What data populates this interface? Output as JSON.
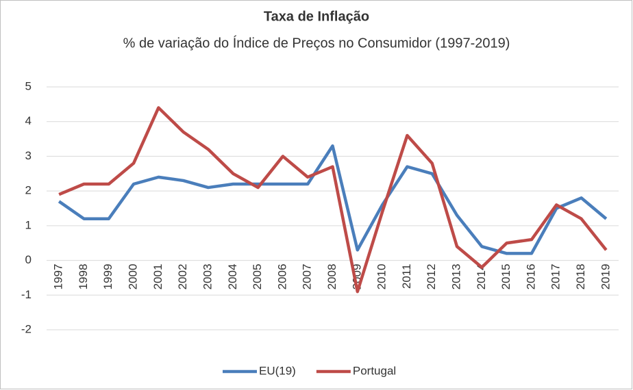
{
  "chart_data": {
    "type": "line",
    "title": "Taxa de Inflação",
    "subtitle": "% de variação do Índice de Preços no Consumidor (1997-2019)",
    "categories": [
      "1997",
      "1998",
      "1999",
      "2000",
      "2001",
      "2002",
      "2003",
      "2004",
      "2005",
      "2006",
      "2007",
      "2008",
      "2009",
      "2010",
      "2011",
      "2012",
      "2013",
      "2014",
      "2015",
      "2016",
      "2017",
      "2018",
      "2019"
    ],
    "series": [
      {
        "name": "EU(19)",
        "color": "#4a7ebb",
        "values": [
          1.7,
          1.2,
          1.2,
          2.2,
          2.4,
          2.3,
          2.1,
          2.2,
          2.2,
          2.2,
          2.2,
          3.3,
          0.3,
          1.6,
          2.7,
          2.5,
          1.3,
          0.4,
          0.2,
          0.2,
          1.5,
          1.8,
          1.2
        ]
      },
      {
        "name": "Portugal",
        "color": "#be4b48",
        "values": [
          1.9,
          2.2,
          2.2,
          2.8,
          4.4,
          3.7,
          3.2,
          2.5,
          2.1,
          3.0,
          2.4,
          2.7,
          -0.9,
          1.4,
          3.6,
          2.8,
          0.4,
          -0.2,
          0.5,
          0.6,
          1.6,
          1.2,
          0.3
        ]
      }
    ],
    "ylim": [
      -2,
      5
    ],
    "yticks": [
      -2,
      -1,
      0,
      1,
      2,
      3,
      4,
      5
    ],
    "grid": true,
    "legend": "bottom"
  }
}
